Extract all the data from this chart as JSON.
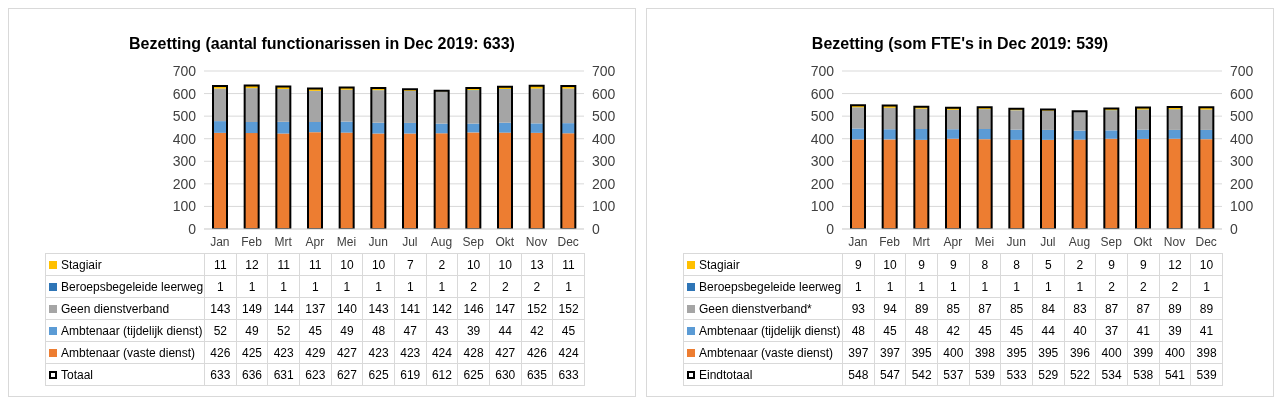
{
  "chart_data": [
    {
      "type": "bar",
      "title": "Bezetting (aantal functionarissen in Dec 2019: 633)",
      "categories": [
        "Jan",
        "Feb",
        "Mrt",
        "Apr",
        "Mei",
        "Jun",
        "Jul",
        "Aug",
        "Sep",
        "Okt",
        "Nov",
        "Dec"
      ],
      "stacked": true,
      "ylim": [
        0,
        700
      ],
      "yticks": [
        0,
        100,
        200,
        300,
        400,
        500,
        600,
        700
      ],
      "y2lim": [
        0,
        700
      ],
      "y2ticks": [
        0,
        100,
        200,
        300,
        400,
        500,
        600,
        700
      ],
      "grid": "y",
      "legend": "bottom",
      "data_labels": true,
      "series": [
        {
          "name": "Ambtenaar (vaste dienst)",
          "color": "#ed7d31",
          "values": [
            426,
            425,
            423,
            429,
            427,
            423,
            423,
            424,
            428,
            427,
            426,
            424
          ]
        },
        {
          "name": "Ambtenaar (tijdelijk dienst)",
          "color": "#5b9bd5",
          "values": [
            52,
            49,
            52,
            45,
            49,
            48,
            47,
            43,
            39,
            44,
            42,
            45
          ]
        },
        {
          "name": "Geen dienstverband",
          "color": "#a5a5a5",
          "values": [
            143,
            149,
            144,
            137,
            140,
            143,
            141,
            142,
            146,
            147,
            152,
            152
          ]
        },
        {
          "name": "Beroepsbegeleide leerweg",
          "color": "#2e75b6",
          "values": [
            1,
            1,
            1,
            1,
            1,
            1,
            1,
            1,
            2,
            2,
            2,
            1
          ]
        },
        {
          "name": "Stagiair",
          "color": "#ffc000",
          "values": [
            11,
            12,
            11,
            11,
            10,
            10,
            7,
            2,
            10,
            10,
            13,
            11
          ]
        },
        {
          "name": "Totaal",
          "color": "#000000",
          "axis": "y2",
          "values": [
            633,
            636,
            631,
            623,
            627,
            625,
            619,
            612,
            625,
            630,
            635,
            633
          ]
        }
      ]
    },
    {
      "type": "bar",
      "title": "Bezetting (som FTE's in Dec 2019: 539)",
      "categories": [
        "Jan",
        "Feb",
        "Mrt",
        "Apr",
        "Mei",
        "Jun",
        "Jul",
        "Aug",
        "Sep",
        "Okt",
        "Nov",
        "Dec"
      ],
      "stacked": true,
      "ylim": [
        0,
        700
      ],
      "yticks": [
        0,
        100,
        200,
        300,
        400,
        500,
        600,
        700
      ],
      "y2lim": [
        0,
        700
      ],
      "y2ticks": [
        0,
        100,
        200,
        300,
        400,
        500,
        600,
        700
      ],
      "grid": "y",
      "legend": "bottom",
      "data_labels": true,
      "series": [
        {
          "name": "Ambtenaar (vaste dienst)",
          "color": "#ed7d31",
          "values": [
            397,
            397,
            395,
            400,
            398,
            395,
            395,
            396,
            400,
            399,
            400,
            398
          ]
        },
        {
          "name": "Ambtenaar (tijdelijk dienst)",
          "color": "#5b9bd5",
          "values": [
            48,
            45,
            48,
            42,
            45,
            45,
            44,
            40,
            37,
            41,
            39,
            41
          ]
        },
        {
          "name": "Geen dienstverband*",
          "color": "#a5a5a5",
          "values": [
            93,
            94,
            89,
            85,
            87,
            85,
            84,
            83,
            87,
            87,
            89,
            89
          ]
        },
        {
          "name": "Beroepsbegeleide leerweg",
          "color": "#2e75b6",
          "values": [
            1,
            1,
            1,
            1,
            1,
            1,
            1,
            1,
            2,
            2,
            2,
            1
          ]
        },
        {
          "name": "Stagiair",
          "color": "#ffc000",
          "values": [
            9,
            10,
            9,
            9,
            8,
            8,
            5,
            2,
            9,
            9,
            12,
            10
          ]
        },
        {
          "name": "Eindtotaal",
          "color": "#000000",
          "axis": "y2",
          "values": [
            548,
            547,
            542,
            537,
            539,
            533,
            529,
            522,
            534,
            538,
            541,
            539
          ]
        }
      ]
    }
  ]
}
